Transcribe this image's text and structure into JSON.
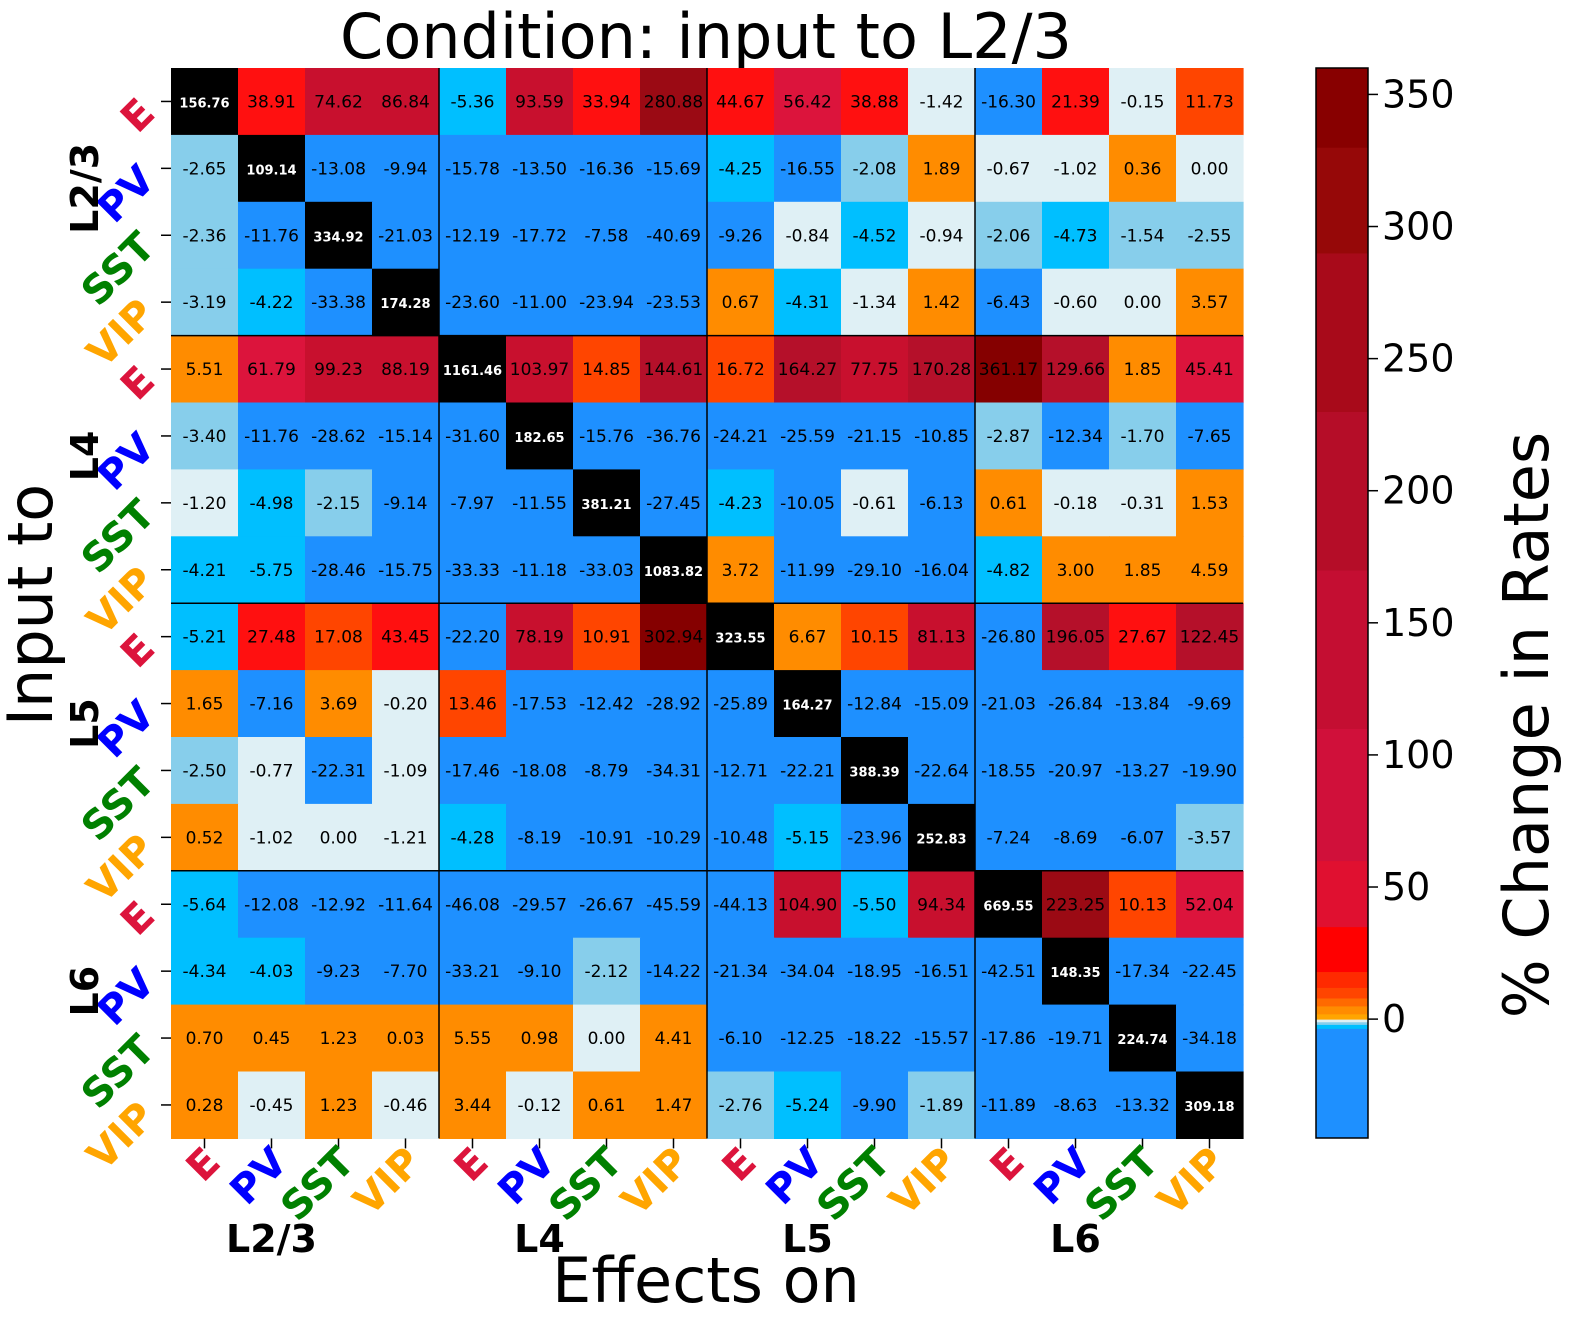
{
  "chart_data": {
    "type": "heatmap",
    "title": "Condition: input to L2/3",
    "xlabel": "Effects on",
    "ylabel": "Input to",
    "colorbar_label": "% Change in Rates",
    "colorbar_ticks": [
      "0",
      "50",
      "100",
      "150",
      "200",
      "250",
      "300",
      "350"
    ],
    "colorbar_range": [
      -45,
      360
    ],
    "cell_types": [
      "E",
      "PV",
      "SST",
      "VIP"
    ],
    "cell_type_colors": [
      "#dc143c",
      "#0000ff",
      "#008000",
      "#ffa500"
    ],
    "layers": [
      "L2/3",
      "L4",
      "L5",
      "L6"
    ],
    "values": [
      [
        "156.76",
        "38.91",
        "74.62",
        "86.84",
        "-5.36",
        "93.59",
        "33.94",
        "280.88",
        "44.67",
        "56.42",
        "38.88",
        "-1.42",
        "-16.30",
        "21.39",
        "-0.15",
        "11.73"
      ],
      [
        "-2.65",
        "109.14",
        "-13.08",
        "-9.94",
        "-15.78",
        "-13.50",
        "-16.36",
        "-15.69",
        "-4.25",
        "-16.55",
        "-2.08",
        "1.89",
        "-0.67",
        "-1.02",
        "0.36",
        "0.00"
      ],
      [
        "-2.36",
        "-11.76",
        "334.92",
        "-21.03",
        "-12.19",
        "-17.72",
        "-7.58",
        "-40.69",
        "-9.26",
        "-0.84",
        "-4.52",
        "-0.94",
        "-2.06",
        "-4.73",
        "-1.54",
        "-2.55"
      ],
      [
        "-3.19",
        "-4.22",
        "-33.38",
        "174.28",
        "-23.60",
        "-11.00",
        "-23.94",
        "-23.53",
        "0.67",
        "-4.31",
        "-1.34",
        "1.42",
        "-6.43",
        "-0.60",
        "0.00",
        "3.57"
      ],
      [
        "5.51",
        "61.79",
        "99.23",
        "88.19",
        "1161.46",
        "103.97",
        "14.85",
        "144.61",
        "16.72",
        "164.27",
        "77.75",
        "170.28",
        "361.17",
        "129.66",
        "1.85",
        "45.41"
      ],
      [
        "-3.40",
        "-11.76",
        "-28.62",
        "-15.14",
        "-31.60",
        "182.65",
        "-15.76",
        "-36.76",
        "-24.21",
        "-25.59",
        "-21.15",
        "-10.85",
        "-2.87",
        "-12.34",
        "-1.70",
        "-7.65"
      ],
      [
        "-1.20",
        "-4.98",
        "-2.15",
        "-9.14",
        "-7.97",
        "-11.55",
        "381.21",
        "-27.45",
        "-4.23",
        "-10.05",
        "-0.61",
        "-6.13",
        "0.61",
        "-0.18",
        "-0.31",
        "1.53"
      ],
      [
        "-4.21",
        "-5.75",
        "-28.46",
        "-15.75",
        "-33.33",
        "-11.18",
        "-33.03",
        "1083.82",
        "3.72",
        "-11.99",
        "-29.10",
        "-16.04",
        "-4.82",
        "3.00",
        "1.85",
        "4.59"
      ],
      [
        "-5.21",
        "27.48",
        "17.08",
        "43.45",
        "-22.20",
        "78.19",
        "10.91",
        "302.94",
        "323.55",
        "6.67",
        "10.15",
        "81.13",
        "-26.80",
        "196.05",
        "27.67",
        "122.45"
      ],
      [
        "1.65",
        "-7.16",
        "3.69",
        "-0.20",
        "13.46",
        "-17.53",
        "-12.42",
        "-28.92",
        "-25.89",
        "164.27",
        "-12.84",
        "-15.09",
        "-21.03",
        "-26.84",
        "-13.84",
        "-9.69"
      ],
      [
        "-2.50",
        "-0.77",
        "-22.31",
        "-1.09",
        "-17.46",
        "-18.08",
        "-8.79",
        "-34.31",
        "-12.71",
        "-22.21",
        "388.39",
        "-22.64",
        "-18.55",
        "-20.97",
        "-13.27",
        "-19.90"
      ],
      [
        "0.52",
        "-1.02",
        "0.00",
        "-1.21",
        "-4.28",
        "-8.19",
        "-10.91",
        "-10.29",
        "-10.48",
        "-5.15",
        "-23.96",
        "252.83",
        "-7.24",
        "-8.69",
        "-6.07",
        "-3.57"
      ],
      [
        "-5.64",
        "-12.08",
        "-12.92",
        "-11.64",
        "-46.08",
        "-29.57",
        "-26.67",
        "-45.59",
        "-44.13",
        "104.90",
        "-5.50",
        "94.34",
        "669.55",
        "223.25",
        "10.13",
        "52.04"
      ],
      [
        "-4.34",
        "-4.03",
        "-9.23",
        "-7.70",
        "-33.21",
        "-9.10",
        "-2.12",
        "-14.22",
        "-21.34",
        "-34.04",
        "-18.95",
        "-16.51",
        "-42.51",
        "148.35",
        "-17.34",
        "-22.45"
      ],
      [
        "0.70",
        "0.45",
        "1.23",
        "0.03",
        "5.55",
        "0.98",
        "0.00",
        "4.41",
        "-6.10",
        "-12.25",
        "-18.22",
        "-15.57",
        "-17.86",
        "-19.71",
        "224.74",
        "-34.18"
      ],
      [
        "0.28",
        "-0.45",
        "1.23",
        "-0.46",
        "3.44",
        "-0.12",
        "0.61",
        "1.47",
        "-2.76",
        "-5.24",
        "-9.90",
        "-1.89",
        "-11.89",
        "-8.63",
        "-13.32",
        "309.18"
      ]
    ]
  }
}
